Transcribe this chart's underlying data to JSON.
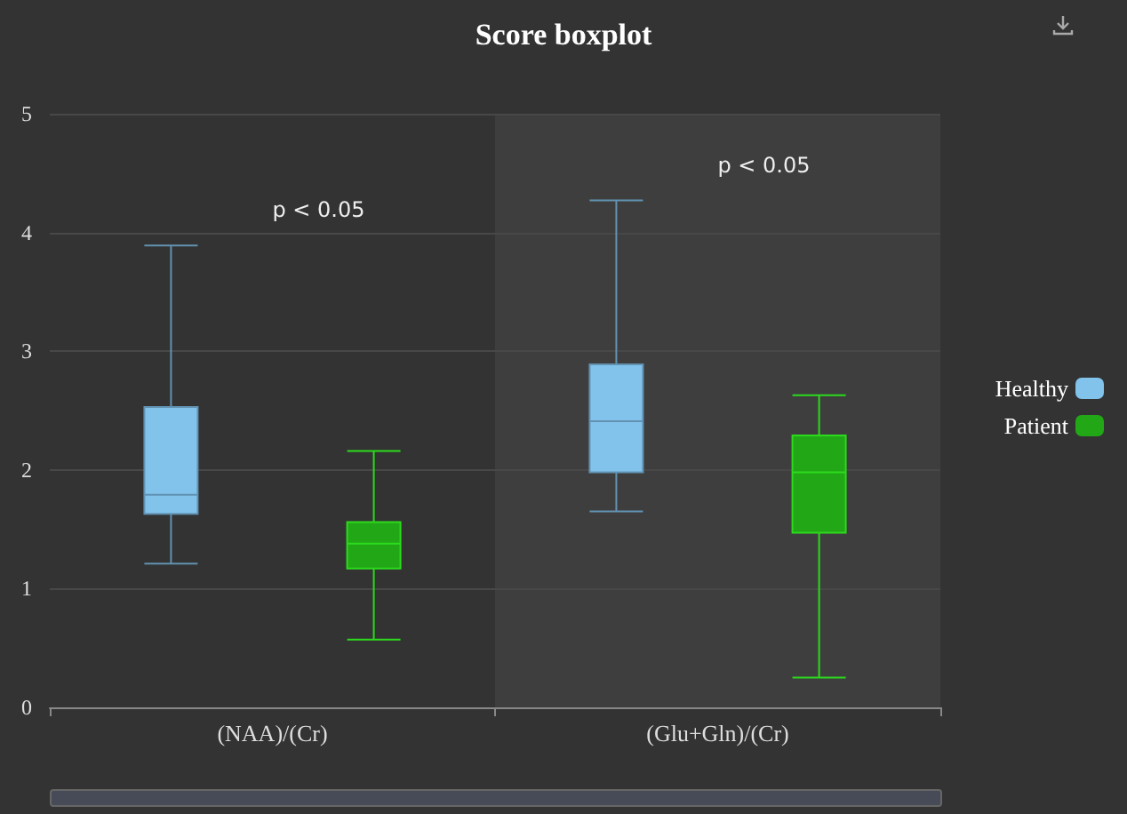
{
  "chart_data": {
    "type": "box",
    "title": "Score boxplot",
    "categories": [
      "(NAA)/(Cr)",
      "(Glu+Gln)/(Cr)"
    ],
    "series": [
      {
        "name": "Healthy",
        "color": "#82c3ec",
        "boxes": [
          {
            "low": 1.21,
            "q1": 1.63,
            "median": 1.79,
            "q3": 2.53,
            "high": 3.89
          },
          {
            "low": 1.65,
            "q1": 1.98,
            "median": 2.41,
            "q3": 2.89,
            "high": 4.27
          }
        ]
      },
      {
        "name": "Patient",
        "color": "#22a816",
        "boxes": [
          {
            "low": 0.57,
            "q1": 1.17,
            "median": 1.38,
            "q3": 1.56,
            "high": 2.16
          },
          {
            "low": 0.25,
            "q1": 1.47,
            "median": 1.98,
            "q3": 2.29,
            "high": 2.63
          }
        ]
      }
    ],
    "annotations": [
      "p < 0.05",
      "p < 0.05"
    ],
    "bands": [
      {
        "axis": "x",
        "from": "(Glu+Gln)/(Cr)",
        "to": "(Glu+Gln)/(Cr)",
        "color": "#3e3e3e"
      }
    ],
    "ylim": [
      0,
      5
    ],
    "yticks": [
      0,
      1,
      2,
      3,
      4,
      5
    ],
    "grid": "y",
    "legend": "right"
  }
}
